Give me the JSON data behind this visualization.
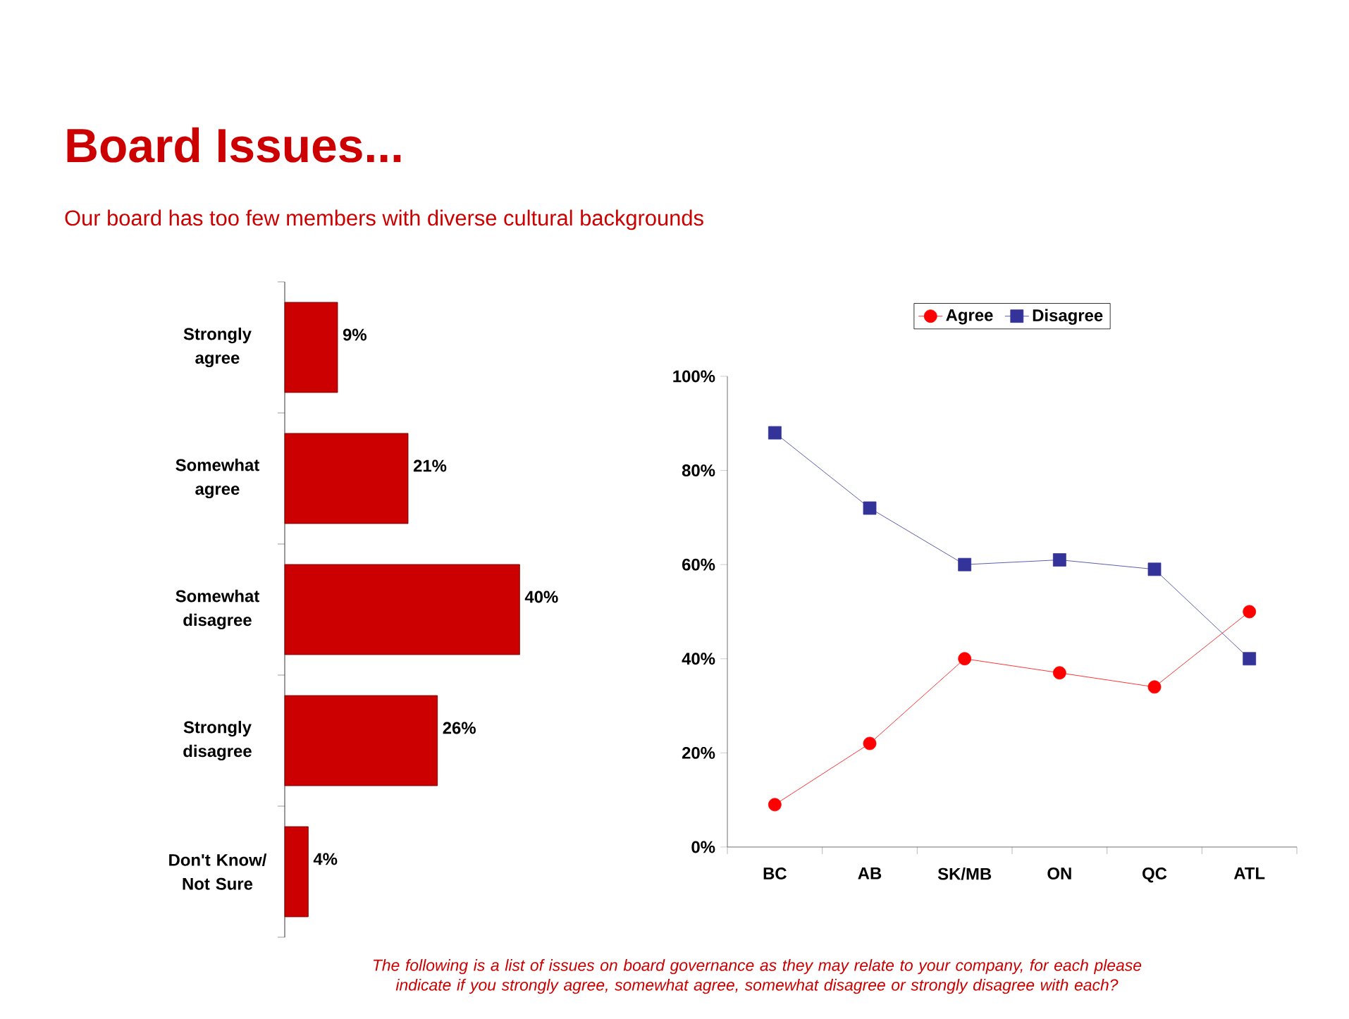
{
  "chart_data": [
    {
      "type": "bar",
      "orientation": "horizontal",
      "title": "Board Issues...",
      "subtitle": "Our board has too few members with diverse cultural backgrounds",
      "categories": [
        "Strongly agree",
        "Somewhat agree",
        "Somewhat disagree",
        "Strongly disagree",
        "Don't Know/ Not Sure"
      ],
      "values": [
        9,
        21,
        40,
        26,
        4
      ],
      "value_labels": [
        "9%",
        "21%",
        "40%",
        "26%",
        "4%"
      ],
      "color": "#cc0000",
      "annotations": [
        "The following is a list of issues on board governance as they may relate to your company, for each please indicate if you strongly agree, somewhat agree, somewhat disagree or strongly disagree with each?"
      ]
    },
    {
      "type": "line",
      "categories": [
        "BC",
        "AB",
        "SK/MB",
        "ON",
        "QC",
        "ATL"
      ],
      "series": [
        {
          "name": "Agree",
          "color": "#ff0000",
          "marker": "circle",
          "values": [
            9,
            22,
            40,
            37,
            34,
            50
          ]
        },
        {
          "name": "Disagree",
          "color": "#333399",
          "marker": "square",
          "values": [
            88,
            72,
            60,
            61,
            59,
            40
          ]
        }
      ],
      "ylim": [
        0,
        100
      ],
      "yticks": [
        {
          "value": 0,
          "label": "0%"
        },
        {
          "value": 20,
          "label": "20%"
        },
        {
          "value": 40,
          "label": "40%"
        },
        {
          "value": 60,
          "label": "60%"
        },
        {
          "value": 80,
          "label": "80%"
        },
        {
          "value": 100,
          "label": "100%"
        }
      ],
      "grid": false,
      "legend": "top"
    }
  ]
}
